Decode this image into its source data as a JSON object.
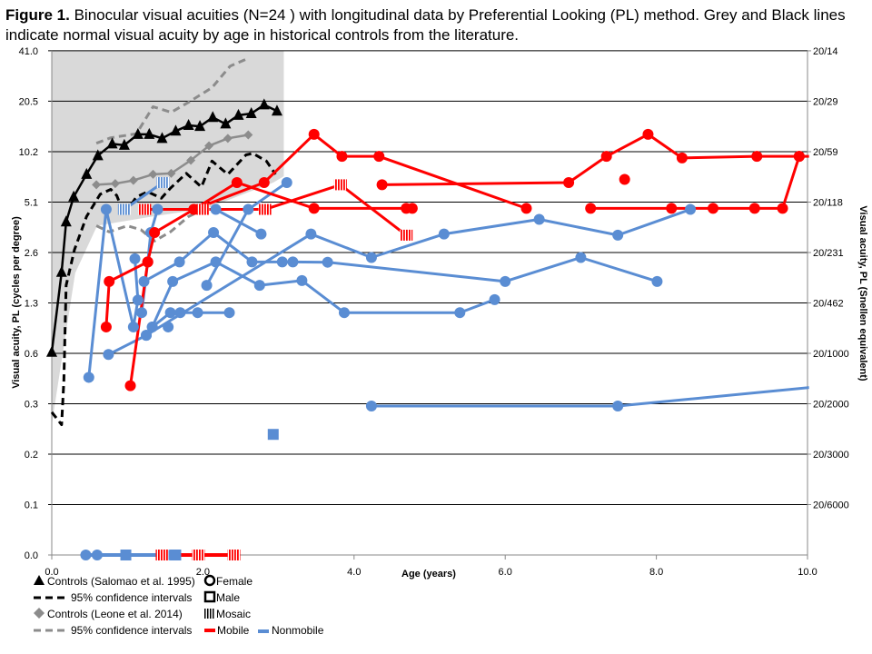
{
  "title": {
    "prefix": "Figure 1.",
    "text": " Binocular visual acuities (N=24 ) with longitudinal data by Preferential Looking (PL) method. Grey and Black lines indicate normal visual acuity by age in historical controls from the literature."
  },
  "chart_data": {
    "type": "line",
    "xlabel": "Age (years)",
    "ylabel": "Visual acuity, PL (cycles per degree)",
    "ylabel_right": "Visual acuity, PL (Snellen equivalent)",
    "xlim": [
      0,
      10
    ],
    "ylim": [
      0.04,
      41
    ],
    "yscale": "log2",
    "grid": true,
    "xticks": [
      {
        "v": 0,
        "label": "0.0"
      },
      {
        "v": 2,
        "label": "2.0"
      },
      {
        "v": 4,
        "label": "4.0"
      },
      {
        "v": 6,
        "label": "6.0"
      },
      {
        "v": 8,
        "label": "8.0"
      },
      {
        "v": 10,
        "label": "10.0"
      }
    ],
    "yticks": [
      {
        "v": 41,
        "label": "41.0"
      },
      {
        "v": 20.5,
        "label": "20.5"
      },
      {
        "v": 10.24,
        "label": "10.2"
      },
      {
        "v": 5.12,
        "label": "5.1"
      },
      {
        "v": 2.56,
        "label": "2.6"
      },
      {
        "v": 1.28,
        "label": "1.3"
      },
      {
        "v": 0.64,
        "label": "0.6"
      },
      {
        "v": 0.32,
        "label": "0.3"
      },
      {
        "v": 0.16,
        "label": "0.2"
      },
      {
        "v": 0.08,
        "label": "0.1"
      },
      {
        "v": 0.04,
        "label": "0.0"
      }
    ],
    "yticks_right": [
      {
        "v": 41,
        "label": "20/14"
      },
      {
        "v": 20.5,
        "label": "20/29"
      },
      {
        "v": 10.24,
        "label": "20/59"
      },
      {
        "v": 5.12,
        "label": "20/118"
      },
      {
        "v": 2.56,
        "label": "20/231"
      },
      {
        "v": 1.28,
        "label": "20/462"
      },
      {
        "v": 0.64,
        "label": "20/1000"
      },
      {
        "v": 0.32,
        "label": "20/2000"
      },
      {
        "v": 0.16,
        "label": "20/3000"
      },
      {
        "v": 0.08,
        "label": "20/6000"
      }
    ],
    "shaded_band": {
      "color": "#d9d9d9",
      "upper": 41,
      "lower": [
        [
          0,
          0.24
        ],
        [
          0.13,
          0.58
        ],
        [
          0.31,
          1.93
        ],
        [
          0.6,
          3.7
        ],
        [
          1.33,
          4.2
        ],
        [
          2.05,
          4.7
        ],
        [
          2.93,
          6.7
        ],
        [
          3.07,
          7.3
        ]
      ]
    },
    "colors": {
      "mobile": "#ff0000",
      "nonmobile": "#5a8dd3",
      "salomao": "#000000",
      "leone": "#8c8c8c"
    },
    "series": [
      {
        "key": "salomao",
        "color": "#000000",
        "dash": false,
        "marker": "triangle",
        "width": 2.5,
        "points": [
          [
            0,
            0.65
          ],
          [
            0.13,
            1.95
          ],
          [
            0.19,
            3.9
          ],
          [
            0.29,
            5.5
          ],
          [
            0.46,
            7.5
          ],
          [
            0.61,
            9.7
          ],
          [
            0.8,
            11.4
          ],
          [
            0.96,
            11.2
          ],
          [
            1.14,
            13.0
          ],
          [
            1.29,
            13.0
          ],
          [
            1.46,
            12.3
          ],
          [
            1.64,
            13.6
          ],
          [
            1.81,
            14.7
          ],
          [
            1.96,
            14.5
          ],
          [
            2.13,
            16.4
          ],
          [
            2.3,
            15.0
          ],
          [
            2.47,
            16.9
          ],
          [
            2.64,
            17.3
          ],
          [
            2.81,
            19.5
          ],
          [
            2.98,
            17.9
          ]
        ]
      },
      {
        "key": "salomao-ci",
        "color": "#000000",
        "dash": true,
        "marker": "none",
        "width": 3,
        "points": [
          [
            0,
            0.285
          ],
          [
            0.13,
            0.24
          ],
          [
            0.16,
            0.44
          ],
          [
            0.19,
            1.63
          ],
          [
            0.3,
            2.66
          ],
          [
            0.46,
            4.2
          ],
          [
            0.64,
            5.7
          ],
          [
            0.78,
            6.1
          ],
          [
            0.86,
            5.6
          ],
          [
            0.96,
            4.3
          ],
          [
            1.12,
            5.5
          ],
          [
            1.27,
            5.9
          ],
          [
            1.45,
            5.4
          ],
          [
            1.57,
            6.2
          ],
          [
            1.78,
            7.6
          ],
          [
            1.98,
            6.3
          ],
          [
            2.12,
            9.0
          ],
          [
            2.33,
            7.5
          ],
          [
            2.57,
            9.8
          ],
          [
            2.66,
            10.0
          ],
          [
            2.84,
            9.0
          ],
          [
            2.96,
            7.5
          ]
        ]
      },
      {
        "key": "leone",
        "color": "#8c8c8c",
        "dash": false,
        "marker": "diamond",
        "width": 2.5,
        "points": [
          [
            0.59,
            6.5
          ],
          [
            0.84,
            6.6
          ],
          [
            1.08,
            6.9
          ],
          [
            1.34,
            7.5
          ],
          [
            1.58,
            7.6
          ],
          [
            1.84,
            9.1
          ],
          [
            2.08,
            11.1
          ],
          [
            2.33,
            12.3
          ],
          [
            2.6,
            12.9
          ]
        ]
      },
      {
        "key": "leone-ci-upper",
        "color": "#8c8c8c",
        "dash": true,
        "marker": "none",
        "width": 3,
        "points": [
          [
            0.59,
            11.5
          ],
          [
            0.78,
            12.4
          ],
          [
            1.12,
            13.1
          ],
          [
            1.34,
            19.0
          ],
          [
            1.58,
            17.6
          ],
          [
            1.81,
            20.2
          ],
          [
            2.12,
            24.7
          ],
          [
            2.36,
            33.2
          ],
          [
            2.6,
            37
          ]
        ]
      },
      {
        "key": "leone-ci-lower",
        "color": "#8c8c8c",
        "dash": true,
        "marker": "none",
        "width": 3,
        "points": [
          [
            0.59,
            3.7
          ],
          [
            0.76,
            3.4
          ],
          [
            1.0,
            3.7
          ],
          [
            1.18,
            3.5
          ],
          [
            1.36,
            3.0
          ],
          [
            1.57,
            3.4
          ],
          [
            1.81,
            4.2
          ],
          [
            2.08,
            4.8
          ]
        ]
      },
      {
        "key": "nonmobile",
        "color": "#5a8dd3",
        "marker": "circle",
        "width": 3,
        "points": [
          [
            0.49,
            0.46
          ],
          [
            0.72,
            4.63
          ],
          [
            1.08,
            0.92
          ],
          [
            1.14,
            1.33
          ],
          [
            1.1,
            2.35
          ]
        ]
      },
      {
        "key": "nonmobile",
        "color": "#5a8dd3",
        "marker": "circle",
        "width": 3,
        "points": [
          [
            1.19,
            1.12
          ],
          [
            1.27,
            2.25
          ],
          [
            1.31,
            3.37
          ],
          [
            1.4,
            4.63
          ]
        ]
      },
      {
        "key": "nonmobile",
        "color": "#5a8dd3",
        "marker": "circle",
        "width": 3,
        "points": [
          [
            0.75,
            0.63
          ],
          [
            1.25,
            0.82
          ],
          [
            1.33,
            0.92
          ],
          [
            1.57,
            1.12
          ],
          [
            1.7,
            1.12
          ],
          [
            1.93,
            1.12
          ],
          [
            2.35,
            1.12
          ]
        ]
      },
      {
        "key": "nonmobile",
        "color": "#5a8dd3",
        "marker": "circle",
        "width": 3,
        "points": [
          [
            1.22,
            1.72
          ],
          [
            1.69,
            2.25
          ],
          [
            2.14,
            3.37
          ],
          [
            2.65,
            2.25
          ],
          [
            3.05,
            2.25
          ],
          [
            3.19,
            2.25
          ],
          [
            3.65,
            2.24
          ],
          [
            6.0,
            1.72
          ],
          [
            7.0,
            2.39
          ],
          [
            8.01,
            1.72
          ]
        ]
      },
      {
        "key": "nonmobile",
        "color": "#5a8dd3",
        "marker": "circle",
        "width": 3,
        "points": [
          [
            1.33,
            0.92
          ],
          [
            1.6,
            1.72
          ],
          [
            2.17,
            2.25
          ],
          [
            2.75,
            1.63
          ],
          [
            3.31,
            1.74
          ],
          [
            3.87,
            1.12
          ],
          [
            5.4,
            1.12
          ],
          [
            5.86,
            1.34
          ]
        ]
      },
      {
        "key": "nonmobile",
        "color": "#5a8dd3",
        "marker": "circle",
        "width": 3,
        "points": [
          [
            2.05,
            1.63
          ],
          [
            2.6,
            4.63
          ],
          [
            3.11,
            6.7
          ]
        ]
      },
      {
        "key": "nonmobile",
        "color": "#5a8dd3",
        "marker": "circle",
        "width": 3,
        "points": [
          [
            1.4,
            4.63
          ],
          [
            2.17,
            4.63
          ],
          [
            2.77,
            3.3
          ]
        ]
      },
      {
        "key": "nonmobile",
        "color": "#5a8dd3",
        "marker": "mosaic",
        "width": 3,
        "points": [
          [
            0.96,
            4.63
          ],
          [
            1.47,
            6.7
          ]
        ]
      },
      {
        "key": "nonmobile",
        "color": "#5a8dd3",
        "marker": "circle",
        "width": 3,
        "points": [
          [
            1.25,
            0.82
          ],
          [
            3.43,
            3.3
          ],
          [
            4.23,
            2.39
          ],
          [
            5.19,
            3.3
          ],
          [
            6.45,
            4.04
          ],
          [
            7.49,
            3.25
          ],
          [
            8.45,
            4.63
          ]
        ]
      },
      {
        "key": "nonmobile",
        "color": "#5a8dd3",
        "marker": "circle",
        "width": 3,
        "points": [
          [
            4.23,
            0.31
          ],
          [
            7.49,
            0.31
          ],
          [
            10.02,
            0.4,
            "none"
          ]
        ]
      },
      {
        "key": "nonmobile",
        "color": "#5a8dd3",
        "marker": "square",
        "width": 3,
        "points": [
          [
            2.93,
            0.21
          ]
        ]
      },
      {
        "key": "nonmobile",
        "color": "#5a8dd3",
        "marker": "circle",
        "width": 3,
        "points": [
          [
            1.54,
            0.92
          ]
        ]
      },
      {
        "key": "nonmobile",
        "color": "#5a8dd3",
        "marker": "circle",
        "width": 4,
        "points": [
          [
            0.45,
            0.04
          ],
          [
            0.6,
            0.04
          ],
          [
            0.98,
            0.04,
            "square"
          ],
          [
            1.57,
            0.04
          ],
          [
            1.64,
            0.04,
            "square"
          ]
        ]
      },
      {
        "key": "mobile",
        "color": "#ff0000",
        "marker": "circle",
        "width": 3,
        "points": [
          [
            0.72,
            0.92
          ],
          [
            0.76,
            1.72
          ],
          [
            1.27,
            2.25
          ]
        ]
      },
      {
        "key": "mobile",
        "color": "#ff0000",
        "marker": "circle",
        "width": 3,
        "points": [
          [
            1.04,
            0.41
          ],
          [
            1.27,
            2.25
          ],
          [
            1.36,
            3.37
          ],
          [
            1.88,
            4.63
          ],
          [
            2.81,
            6.7
          ],
          [
            3.47,
            13.0
          ],
          [
            3.84,
            9.6
          ],
          [
            4.33,
            9.6
          ],
          [
            6.28,
            4.7
          ]
        ]
      },
      {
        "key": "mobile",
        "color": "#ff0000",
        "marker": "circle",
        "width": 3,
        "points": [
          [
            1.88,
            4.63
          ],
          [
            2.45,
            6.7
          ],
          [
            3.47,
            4.7
          ],
          [
            4.69,
            4.7
          ],
          [
            4.77,
            4.7
          ]
        ]
      },
      {
        "key": "mobile",
        "color": "#ff0000",
        "marker": "mosaic",
        "width": 3,
        "points": [
          [
            1.23,
            4.63
          ],
          [
            2.0,
            4.63
          ],
          [
            2.82,
            4.63
          ],
          [
            3.82,
            6.5
          ],
          [
            4.69,
            3.25
          ]
        ]
      },
      {
        "key": "mobile",
        "color": "#ff0000",
        "marker": "circle",
        "width": 3,
        "points": [
          [
            4.37,
            6.5
          ],
          [
            6.84,
            6.7
          ],
          [
            7.34,
            9.6
          ],
          [
            7.89,
            13.0
          ],
          [
            8.34,
            9.4
          ],
          [
            9.33,
            9.6
          ],
          [
            9.89,
            9.6
          ],
          [
            10.02,
            9.6,
            "none"
          ]
        ]
      },
      {
        "key": "mobile",
        "color": "#ff0000",
        "marker": "circle",
        "width": 3,
        "points": [
          [
            9.89,
            9.6
          ],
          [
            9.67,
            4.7
          ],
          [
            9.3,
            4.7
          ],
          [
            8.75,
            4.7
          ],
          [
            8.2,
            4.7
          ],
          [
            7.13,
            4.7
          ]
        ]
      },
      {
        "key": "mobile",
        "color": "#ff0000",
        "marker": "circle",
        "width": 3,
        "points": [
          [
            7.58,
            7.0
          ]
        ]
      },
      {
        "key": "mobile",
        "color": "#ff0000",
        "marker": "mosaic",
        "width": 4,
        "points": [
          [
            1.46,
            0.04
          ],
          [
            1.94,
            0.04
          ],
          [
            2.41,
            0.04
          ]
        ]
      }
    ],
    "legend": {
      "placement": "bottom-left",
      "items": [
        {
          "label": "Controls (Salomao et al. 1995)",
          "symbol": "triangle"
        },
        {
          "label": "Female",
          "symbol": "circle-outline"
        },
        {
          "label": "95% confidence intervals",
          "symbol": "dash-black"
        },
        {
          "label": "Male",
          "symbol": "square-outline"
        },
        {
          "label": "Controls (Leone et al. 2014)",
          "symbol": "diamond"
        },
        {
          "label": "Mosaic",
          "symbol": "mosaic"
        },
        {
          "label": "95% confidence intervals",
          "symbol": "dash-grey"
        },
        {
          "label": "Mobile",
          "symbol": "line-red"
        },
        {
          "label": "Nonmobile",
          "symbol": "line-blue"
        }
      ]
    }
  }
}
